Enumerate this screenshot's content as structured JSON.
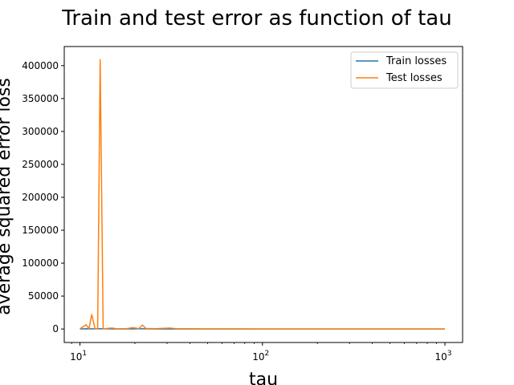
{
  "chart_data": {
    "type": "line",
    "title": "Train and test error as function of tau",
    "xlabel": "tau",
    "ylabel": "average squared error loss",
    "xscale": "log",
    "xlim": [
      8.2,
      1250
    ],
    "ylim": [
      -20500,
      429000
    ],
    "xticks": [
      {
        "value": 10,
        "base": "10",
        "exp": "1"
      },
      {
        "value": 100,
        "base": "10",
        "exp": "2"
      },
      {
        "value": 1000,
        "base": "10",
        "exp": "3"
      }
    ],
    "yticks": [
      {
        "value": 0,
        "label": "0"
      },
      {
        "value": 50000,
        "label": "50000"
      },
      {
        "value": 100000,
        "label": "100000"
      },
      {
        "value": 150000,
        "label": "150000"
      },
      {
        "value": 200000,
        "label": "200000"
      },
      {
        "value": 250000,
        "label": "250000"
      },
      {
        "value": 300000,
        "label": "300000"
      },
      {
        "value": 350000,
        "label": "350000"
      },
      {
        "value": 400000,
        "label": "400000"
      }
    ],
    "grid": false,
    "legend_position": "top-right",
    "series": [
      {
        "name": "Train losses",
        "color": "#1f77b4",
        "points": [
          [
            10,
            0
          ],
          [
            10.8,
            300
          ],
          [
            11.6,
            200
          ],
          [
            12.5,
            400
          ],
          [
            13.4,
            300
          ],
          [
            15,
            200
          ],
          [
            17,
            100
          ],
          [
            19.5,
            150
          ],
          [
            22,
            300
          ],
          [
            26,
            100
          ],
          [
            32,
            100
          ],
          [
            40,
            50
          ],
          [
            60,
            30
          ],
          [
            100,
            20
          ],
          [
            200,
            10
          ],
          [
            500,
            5
          ],
          [
            1000,
            5
          ]
        ]
      },
      {
        "name": "Test losses",
        "color": "#ff7f0e",
        "points": [
          [
            10,
            200
          ],
          [
            10.8,
            6500
          ],
          [
            11.2,
            300
          ],
          [
            11.6,
            22000
          ],
          [
            12.1,
            300
          ],
          [
            12.5,
            200
          ],
          [
            12.9,
            409000
          ],
          [
            13.4,
            400
          ],
          [
            14,
            800
          ],
          [
            15,
            1500
          ],
          [
            16,
            300
          ],
          [
            18,
            500
          ],
          [
            19.5,
            2000
          ],
          [
            21,
            500
          ],
          [
            22,
            6000
          ],
          [
            23,
            800
          ],
          [
            26,
            500
          ],
          [
            31,
            1500
          ],
          [
            34,
            400
          ],
          [
            40,
            300
          ],
          [
            50,
            200
          ],
          [
            70,
            150
          ],
          [
            100,
            100
          ],
          [
            200,
            80
          ],
          [
            500,
            50
          ],
          [
            1000,
            50
          ]
        ]
      }
    ]
  }
}
